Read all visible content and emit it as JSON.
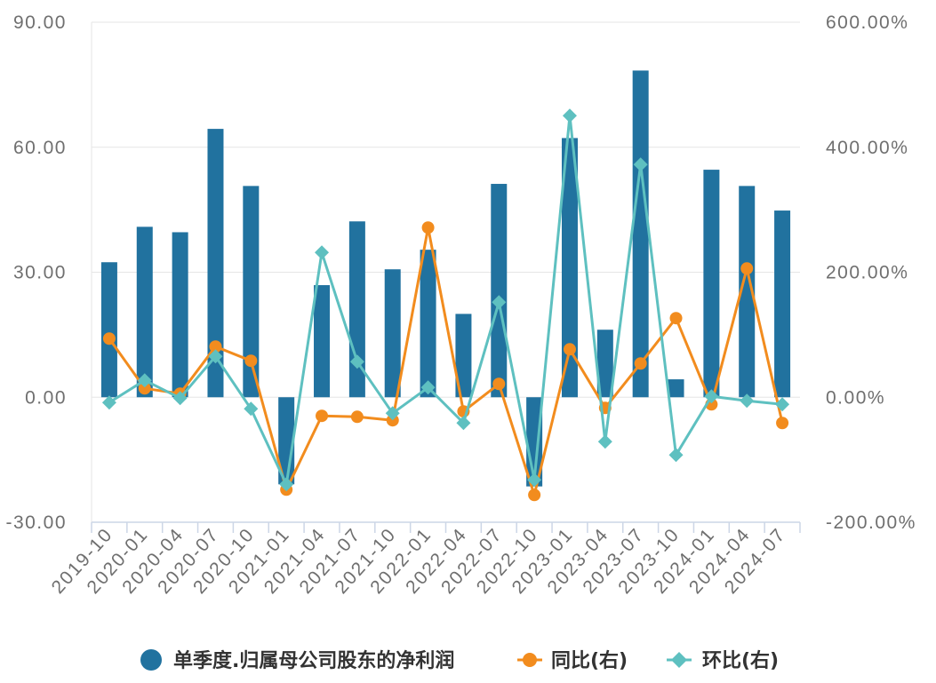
{
  "chart_data": {
    "type": "bar",
    "categories": [
      "2019-10",
      "2020-01",
      "2020-04",
      "2020-07",
      "2020-10",
      "2021-01",
      "2021-04",
      "2021-07",
      "2021-10",
      "2022-01",
      "2022-04",
      "2022-07",
      "2022-10",
      "2023-01",
      "2023-04",
      "2023-07",
      "2023-10",
      "2024-01",
      "2024-04",
      "2024-07"
    ],
    "series": [
      {
        "name": "单季度.归属母公司股东的净利润",
        "type": "bar",
        "axis": "left",
        "color": "#21729f",
        "marker": "circle",
        "values": [
          32.4,
          40.9,
          39.6,
          64.4,
          50.7,
          -20.9,
          26.9,
          42.2,
          30.7,
          35.4,
          20.0,
          51.2,
          -21.4,
          62.2,
          16.2,
          78.4,
          4.3,
          54.6,
          50.7,
          44.8
        ]
      },
      {
        "name": "同比(右)",
        "type": "line",
        "axis": "right",
        "color": "#f28c1e",
        "marker": "circle",
        "values": [
          93.8,
          14.2,
          5.7,
          81.0,
          58.3,
          -147.8,
          -29.8,
          -31.3,
          -36.9,
          271.4,
          -22.7,
          21.3,
          -156.3,
          76.7,
          -17.1,
          54.0,
          126.5,
          -11.4,
          206.0,
          -41.2
        ]
      },
      {
        "name": "环比(右)",
        "type": "line",
        "axis": "right",
        "color": "#5ec0c0",
        "marker": "diamond",
        "values": [
          -8.5,
          27.0,
          -1.4,
          65.4,
          -18.5,
          -139.3,
          231.6,
          56.8,
          -25.6,
          15.6,
          -41.2,
          152.0,
          -132.1,
          450.4,
          -71.0,
          372.3,
          -92.4,
          1.4,
          -5.7,
          -11.4
        ]
      }
    ],
    "y_axis_left": {
      "min": -30,
      "max": 90,
      "ticks": [
        90,
        60,
        30,
        0,
        -30
      ],
      "tick_labels": [
        "90.00",
        "60.00",
        "30.00",
        "0.00",
        "-30.00"
      ]
    },
    "y_axis_right": {
      "min": -200,
      "max": 600,
      "ticks": [
        600,
        400,
        200,
        0,
        -200
      ],
      "tick_labels": [
        "600.00%",
        "400.00%",
        "200.00%",
        "0.00%",
        "-200.00%"
      ]
    },
    "grid": true,
    "legend": "bottom"
  }
}
